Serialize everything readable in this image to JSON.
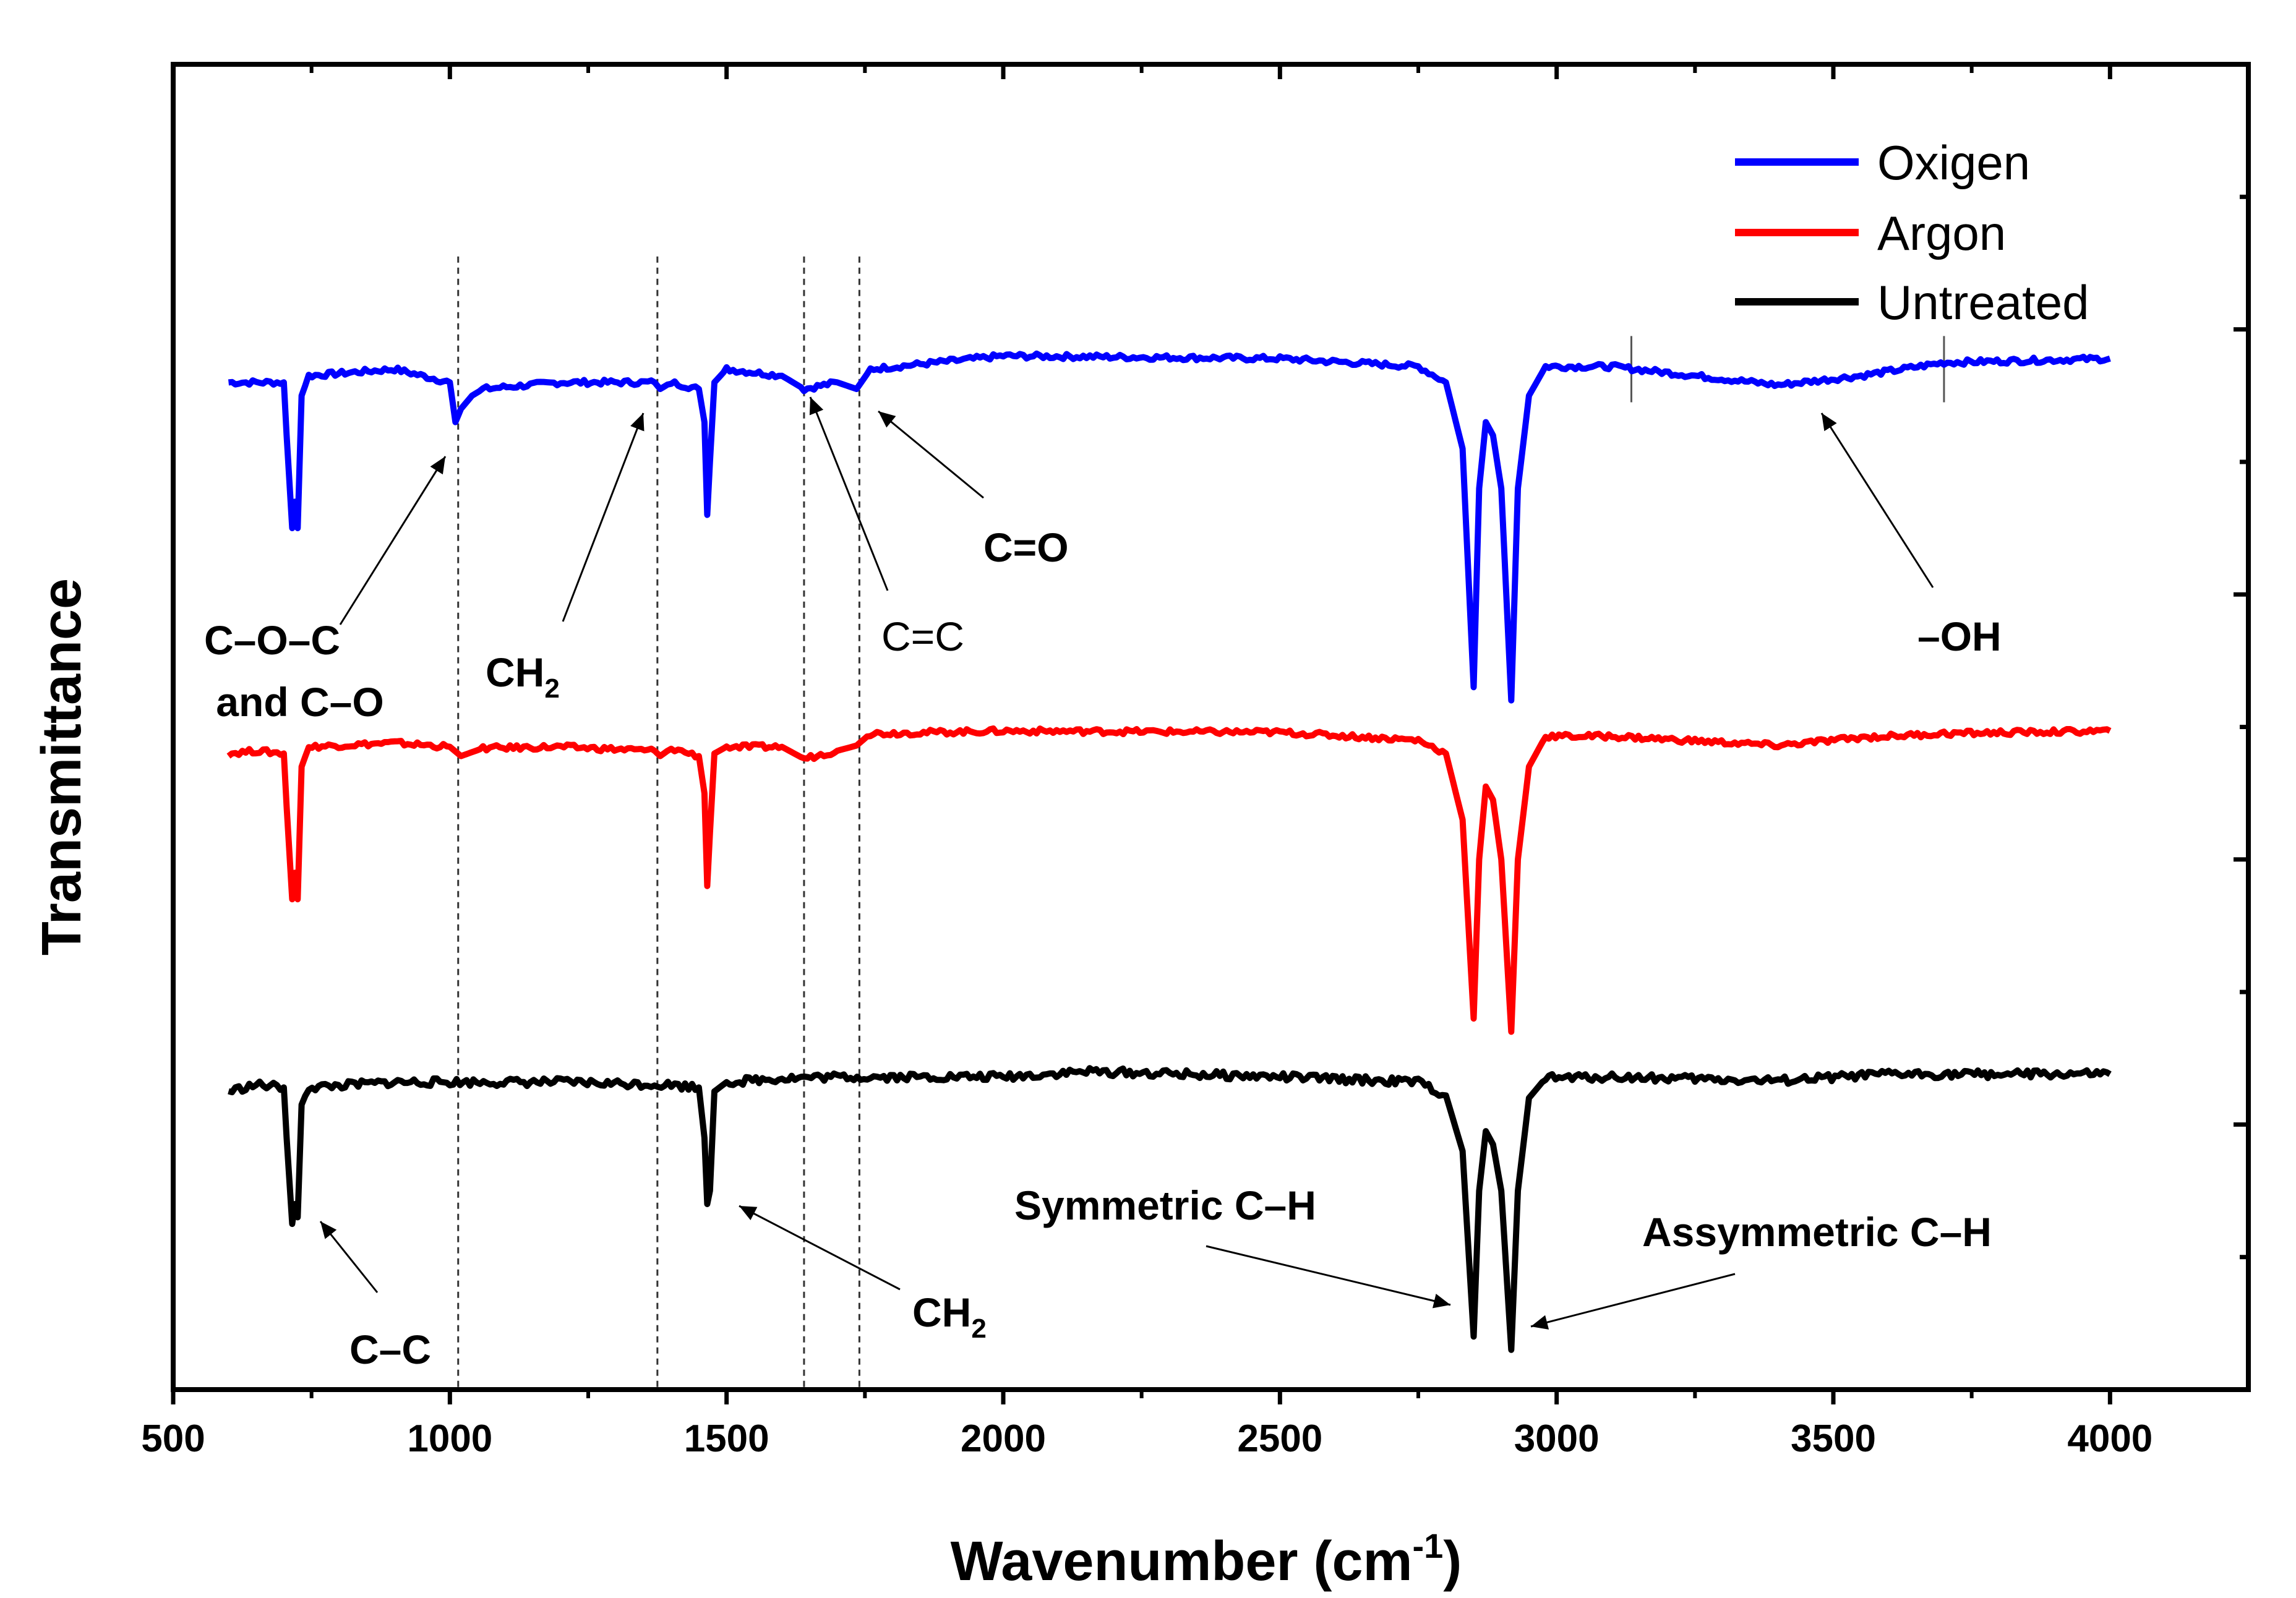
{
  "chart_data": {
    "type": "line",
    "title": "",
    "xlabel": "Wavenumber (cm",
    "xlabel_sup": "-1",
    "xlabel_close": ")",
    "ylabel": "Transmittance",
    "xlim": [
      500,
      4250
    ],
    "ylim": [
      0,
      10
    ],
    "x_ticks": [
      500,
      1000,
      1500,
      2000,
      2500,
      3000,
      3500,
      4000
    ],
    "x_tick_labels": [
      "500",
      "1000",
      "1500",
      "2000",
      "2500",
      "3000",
      "3500",
      "4000"
    ],
    "y_tick_labels_shown": false,
    "legend_position": "top-right",
    "series": [
      {
        "name": "Oxigen",
        "color": "#0000ff",
        "baseline": 7.7,
        "points": [
          [
            600,
            7.6
          ],
          [
            650,
            7.6
          ],
          [
            700,
            7.6
          ],
          [
            705,
            7.2
          ],
          [
            715,
            6.5
          ],
          [
            720,
            6.7
          ],
          [
            725,
            6.5
          ],
          [
            732,
            7.5
          ],
          [
            745,
            7.65
          ],
          [
            900,
            7.7
          ],
          [
            1000,
            7.6
          ],
          [
            1010,
            7.3
          ],
          [
            1020,
            7.4
          ],
          [
            1040,
            7.5
          ],
          [
            1060,
            7.55
          ],
          [
            1200,
            7.6
          ],
          [
            1370,
            7.6
          ],
          [
            1380,
            7.55
          ],
          [
            1400,
            7.6
          ],
          [
            1450,
            7.55
          ],
          [
            1460,
            7.3
          ],
          [
            1465,
            6.6
          ],
          [
            1470,
            7.0
          ],
          [
            1478,
            7.6
          ],
          [
            1500,
            7.7
          ],
          [
            1600,
            7.65
          ],
          [
            1640,
            7.55
          ],
          [
            1700,
            7.6
          ],
          [
            1735,
            7.55
          ],
          [
            1760,
            7.7
          ],
          [
            2000,
            7.8
          ],
          [
            2500,
            7.78
          ],
          [
            2750,
            7.72
          ],
          [
            2800,
            7.6
          ],
          [
            2830,
            7.1
          ],
          [
            2850,
            5.3
          ],
          [
            2860,
            6.8
          ],
          [
            2872,
            7.3
          ],
          [
            2885,
            7.2
          ],
          [
            2900,
            6.8
          ],
          [
            2918,
            5.2
          ],
          [
            2930,
            6.8
          ],
          [
            2950,
            7.5
          ],
          [
            2980,
            7.72
          ],
          [
            3100,
            7.72
          ],
          [
            3400,
            7.58
          ],
          [
            3550,
            7.65
          ],
          [
            3700,
            7.75
          ],
          [
            4000,
            7.78
          ]
        ]
      },
      {
        "name": "Argon",
        "color": "#ff0000",
        "baseline": 4.9,
        "points": [
          [
            600,
            4.8
          ],
          [
            650,
            4.82
          ],
          [
            700,
            4.8
          ],
          [
            705,
            4.4
          ],
          [
            715,
            3.7
          ],
          [
            720,
            3.9
          ],
          [
            725,
            3.7
          ],
          [
            732,
            4.7
          ],
          [
            745,
            4.85
          ],
          [
            900,
            4.88
          ],
          [
            1000,
            4.85
          ],
          [
            1020,
            4.78
          ],
          [
            1060,
            4.84
          ],
          [
            1200,
            4.85
          ],
          [
            1370,
            4.82
          ],
          [
            1380,
            4.78
          ],
          [
            1400,
            4.84
          ],
          [
            1450,
            4.78
          ],
          [
            1460,
            4.5
          ],
          [
            1465,
            3.8
          ],
          [
            1470,
            4.2
          ],
          [
            1478,
            4.8
          ],
          [
            1500,
            4.85
          ],
          [
            1600,
            4.85
          ],
          [
            1640,
            4.76
          ],
          [
            1700,
            4.82
          ],
          [
            1735,
            4.86
          ],
          [
            1760,
            4.95
          ],
          [
            2000,
            4.97
          ],
          [
            2500,
            4.96
          ],
          [
            2750,
            4.9
          ],
          [
            2800,
            4.8
          ],
          [
            2830,
            4.3
          ],
          [
            2850,
            2.8
          ],
          [
            2860,
            4.0
          ],
          [
            2872,
            4.55
          ],
          [
            2885,
            4.45
          ],
          [
            2900,
            4.0
          ],
          [
            2918,
            2.7
          ],
          [
            2930,
            4.0
          ],
          [
            2950,
            4.7
          ],
          [
            2980,
            4.93
          ],
          [
            3100,
            4.93
          ],
          [
            3400,
            4.86
          ],
          [
            3550,
            4.92
          ],
          [
            3700,
            4.95
          ],
          [
            4000,
            4.97
          ]
        ]
      },
      {
        "name": "Untreated",
        "color": "#000000",
        "baseline": 2.3,
        "points": [
          [
            600,
            2.25
          ],
          [
            650,
            2.3
          ],
          [
            700,
            2.28
          ],
          [
            705,
            1.9
          ],
          [
            715,
            1.25
          ],
          [
            720,
            1.4
          ],
          [
            725,
            1.3
          ],
          [
            732,
            2.15
          ],
          [
            745,
            2.28
          ],
          [
            900,
            2.32
          ],
          [
            1000,
            2.32
          ],
          [
            1200,
            2.32
          ],
          [
            1400,
            2.3
          ],
          [
            1450,
            2.28
          ],
          [
            1460,
            1.9
          ],
          [
            1465,
            1.4
          ],
          [
            1470,
            1.5
          ],
          [
            1478,
            2.25
          ],
          [
            1500,
            2.32
          ],
          [
            1600,
            2.35
          ],
          [
            1700,
            2.36
          ],
          [
            2000,
            2.36
          ],
          [
            2150,
            2.4
          ],
          [
            2500,
            2.36
          ],
          [
            2750,
            2.32
          ],
          [
            2800,
            2.22
          ],
          [
            2830,
            1.8
          ],
          [
            2850,
            0.4
          ],
          [
            2860,
            1.5
          ],
          [
            2872,
            1.95
          ],
          [
            2885,
            1.85
          ],
          [
            2900,
            1.5
          ],
          [
            2918,
            0.3
          ],
          [
            2930,
            1.5
          ],
          [
            2950,
            2.2
          ],
          [
            2980,
            2.35
          ],
          [
            3100,
            2.36
          ],
          [
            3400,
            2.33
          ],
          [
            3600,
            2.38
          ],
          [
            4000,
            2.38
          ]
        ]
      }
    ],
    "reference_lines_x": [
      1015,
      1375,
      1640,
      1740
    ],
    "oh_band_marks_x": [
      3135,
      3700
    ],
    "annotations": [
      {
        "id": "coc",
        "lines": [
          "C–O–C",
          "and C–O"
        ],
        "bold": true
      },
      {
        "id": "ch2-top",
        "text": "CH",
        "sub": "2",
        "bold": true
      },
      {
        "id": "cc-double",
        "text": "C=C",
        "bold": false
      },
      {
        "id": "co-double",
        "text": "C=O",
        "bold": true
      },
      {
        "id": "oh",
        "text": "–OH",
        "bold": true
      },
      {
        "id": "cc-single",
        "text": "C–C",
        "bold": true
      },
      {
        "id": "ch2-bottom",
        "text": "CH",
        "sub": "2",
        "bold": true
      },
      {
        "id": "sym-ch",
        "text": "Symmetric C–H",
        "bold": true
      },
      {
        "id": "asym-ch",
        "text": "Assymmetric C–H",
        "bold": true
      }
    ]
  }
}
